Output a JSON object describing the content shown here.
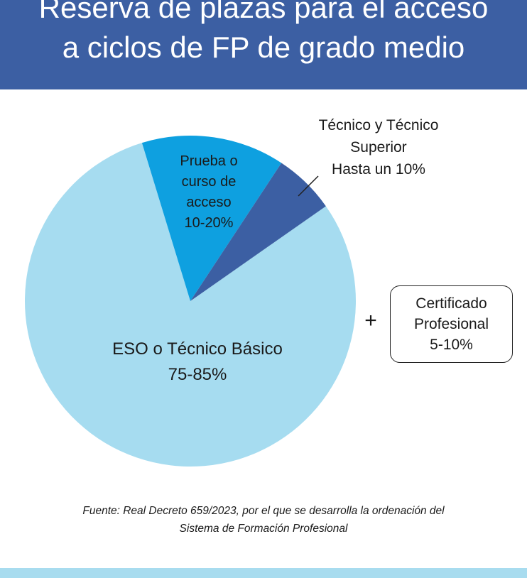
{
  "header": {
    "title_line1": "Reserva de plazas para el acceso",
    "title_line2": "a ciclos de FP de grado medio",
    "background": "#3c5fa3"
  },
  "chart_data": {
    "type": "pie",
    "title": "Reserva de plazas para el acceso a ciclos de FP de grado medio",
    "slices": [
      {
        "label_lines": [
          "ESO o Técnico Básico",
          "75-85%"
        ],
        "value": 80,
        "color": "#a6dcf0"
      },
      {
        "label_lines": [
          "Prueba o",
          "curso de",
          "acceso",
          "10-20%"
        ],
        "value": 14,
        "color": "#0ea0e0"
      },
      {
        "label_lines": [
          "Técnico y Técnico",
          "Superior",
          "Hasta un 10%"
        ],
        "value": 6,
        "color": "#3c5fa3"
      }
    ],
    "start_angle_deg": -17
  },
  "extra": {
    "plus_sign": "+",
    "certificado_lines": [
      "Certificado",
      "Profesional",
      "5-10%"
    ]
  },
  "source": {
    "line1": "Fuente: Real Decreto 659/2023, por el que se desarrolla la ordenación del",
    "line2": "Sistema de Formación Profesional"
  },
  "footer": {
    "color": "#a8dcef"
  }
}
